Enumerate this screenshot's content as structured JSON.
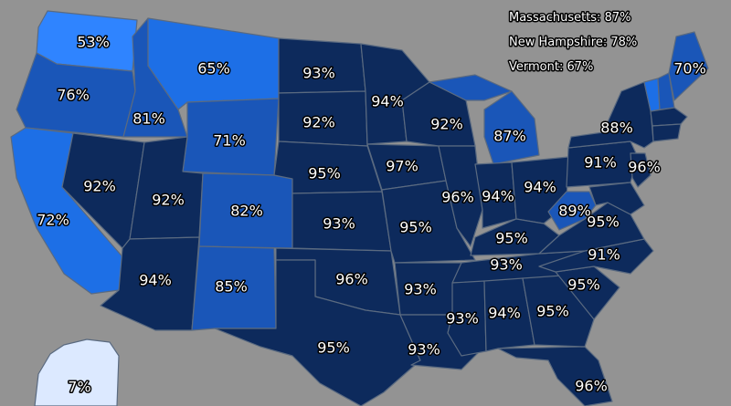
{
  "colors": {
    "background": "#939393",
    "dark_navy": "#0d2a5c",
    "mid_blue": "#1a56b8",
    "bright_blue": "#1d6fe6",
    "light_blue": "#2f84ff",
    "pale_blue": "#dce9ff"
  },
  "annotations": [
    "Massachusetts: 87%",
    "New Hampshire: 78%",
    "Vermont: 67%"
  ],
  "states": {
    "WA": "53%",
    "OR": "76%",
    "CA": "72%",
    "ID": "81%",
    "NV": "92%",
    "MT": "65%",
    "WY": "71%",
    "UT": "92%",
    "AZ": "94%",
    "CO": "82%",
    "NM": "85%",
    "ND": "93%",
    "SD": "92%",
    "NE": "95%",
    "KS": "93%",
    "OK": "96%",
    "TX": "95%",
    "MN": "94%",
    "IA": "97%",
    "MO": "95%",
    "AR": "93%",
    "LA": "93%",
    "WI": "92%",
    "IL": "96%",
    "MI": "87%",
    "IN": "94%",
    "OH": "94%",
    "KY": "95%",
    "TN": "93%",
    "MS": "93%",
    "AL": "94%",
    "GA": "95%",
    "FL": "96%",
    "SC": "95%",
    "NC": "91%",
    "VA": "95%",
    "WV": "89%",
    "PA": "91%",
    "NY": "88%",
    "NJ": "96%",
    "ME": "70%",
    "AK": "7%"
  }
}
